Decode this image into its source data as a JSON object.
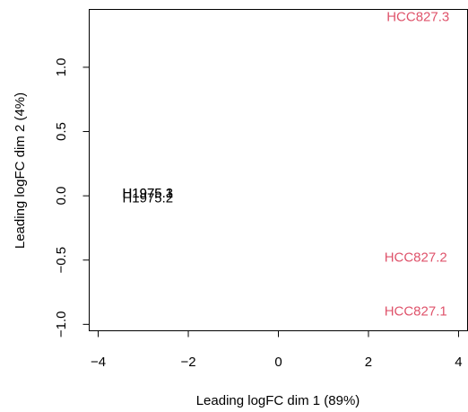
{
  "chart_data": {
    "type": "scatter",
    "title": "",
    "xlabel": "Leading logFC dim 1 (89%)",
    "ylabel": "Leading logFC dim 2 (4%)",
    "xlim": [
      -4.2,
      4.2
    ],
    "ylim": [
      -1.05,
      1.45
    ],
    "xticks": [
      -4,
      -2,
      0,
      2,
      4
    ],
    "xtick_labels": [
      "−4",
      "−2",
      "0",
      "2",
      "4"
    ],
    "yticks": [
      -1.0,
      -0.5,
      0.0,
      0.5,
      1.0
    ],
    "ytick_labels": [
      "−1.0",
      "−0.5",
      "0.0",
      "0.5",
      "1.0"
    ],
    "grid": false,
    "legend": "none",
    "points": [
      {
        "label": "H1975.1",
        "x": -2.9,
        "y": 0.02,
        "color": "#000000"
      },
      {
        "label": "H1975.3",
        "x": -2.9,
        "y": 0.02,
        "color": "#000000"
      },
      {
        "label": "H1975.2",
        "x": -2.9,
        "y": -0.02,
        "color": "#000000"
      },
      {
        "label": "HCC827.3",
        "x": 3.1,
        "y": 1.39,
        "color": "#DF536B"
      },
      {
        "label": "HCC827.2",
        "x": 3.05,
        "y": -0.48,
        "color": "#DF536B"
      },
      {
        "label": "HCC827.1",
        "x": 3.05,
        "y": -0.9,
        "color": "#DF536B"
      }
    ]
  }
}
